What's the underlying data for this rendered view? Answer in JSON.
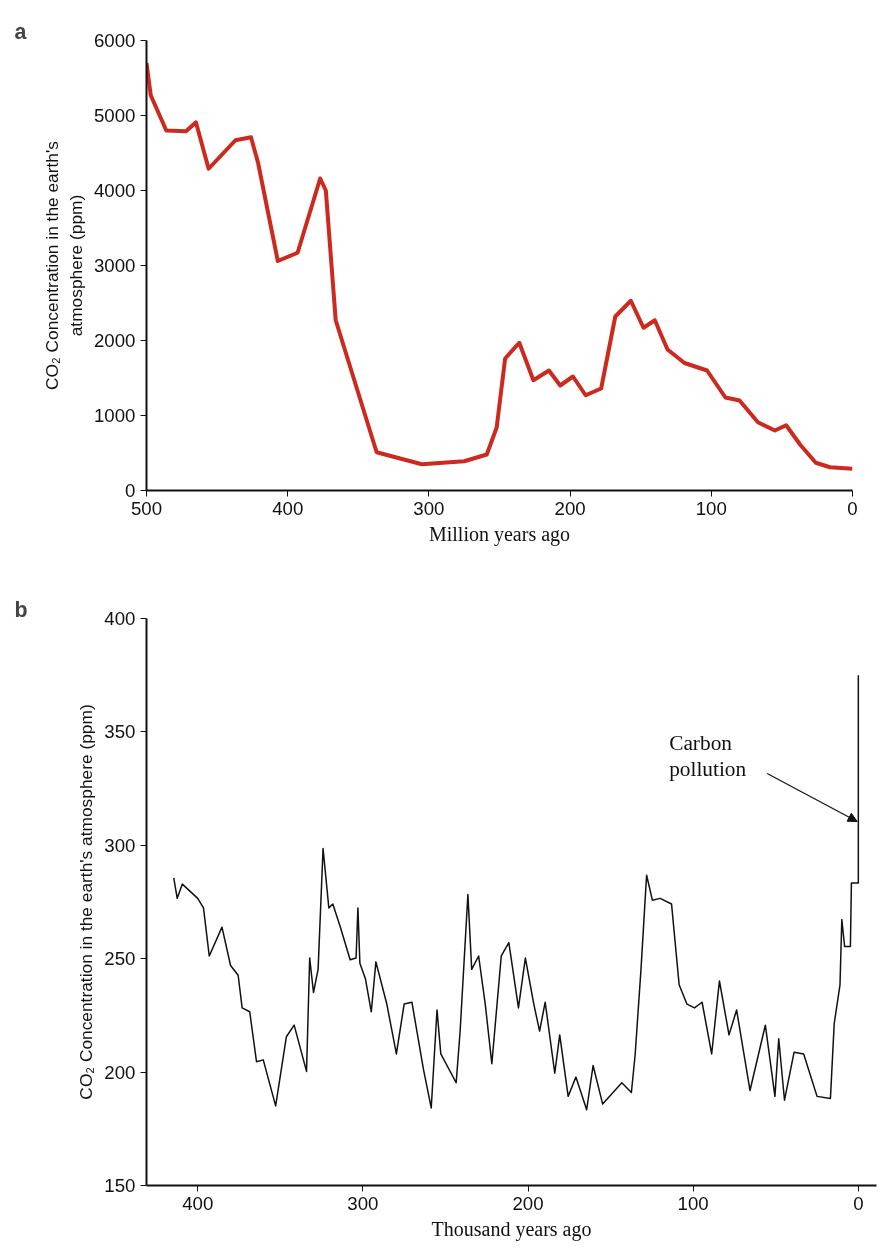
{
  "chart_data": [
    {
      "type": "line",
      "title": "a",
      "xlabel": "Million years ago",
      "ylabel": "CO₂ Concentration in the earth's\natmosphere (ppm)",
      "xlim": [
        500,
        0
      ],
      "xticks": [
        500,
        400,
        300,
        200,
        100,
        0
      ],
      "ylim": [
        0,
        6000
      ],
      "yticks": [
        0,
        1000,
        2000,
        3000,
        4000,
        5000,
        6000
      ],
      "grid": false,
      "series": [
        {
          "color": "#cc2a1e",
          "x": [
            500,
            497,
            486,
            472,
            465,
            456,
            444,
            437,
            426,
            421,
            407,
            393,
            377,
            373,
            366,
            337,
            305,
            275,
            259,
            252,
            246,
            236,
            226,
            215,
            207,
            198,
            189,
            178,
            168,
            157,
            148,
            140,
            131,
            119,
            103,
            90,
            80,
            67,
            55,
            47,
            37,
            26,
            16,
            0
          ],
          "values": [
            5700,
            5270,
            4800,
            4790,
            4910,
            4290,
            4530,
            4670,
            4710,
            4370,
            3060,
            3170,
            4160,
            4000,
            2270,
            510,
            350,
            390,
            480,
            840,
            1760,
            1970,
            1470,
            1600,
            1400,
            1520,
            1270,
            1360,
            2320,
            2530,
            2170,
            2270,
            1880,
            1700,
            1600,
            1240,
            1200,
            910,
            800,
            870,
            610,
            370,
            310,
            290
          ]
        }
      ]
    },
    {
      "type": "line",
      "title": "b",
      "xlabel": "Thousand years ago",
      "ylabel": "CO₂ Concentration in the earth's atmosphere (ppm)",
      "xlim": [
        431,
        -11
      ],
      "xticks": [
        400,
        300,
        200,
        100,
        0
      ],
      "ylim": [
        150,
        400
      ],
      "yticks": [
        150,
        200,
        250,
        300,
        350,
        400
      ],
      "grid": false,
      "annotations": [
        {
          "text": "Carbon\npollution",
          "x": 0.7,
          "y": 310.5
        }
      ],
      "series": [
        {
          "color": "#111111",
          "x": [
            414.5,
            412.4,
            409.3,
            400,
            396.5,
            393,
            385.3,
            380.1,
            375.5,
            373.1,
            368.5,
            364.4,
            360.3,
            352.8,
            346.3,
            341.6,
            334.1,
            332.2,
            329.9,
            327.1,
            324.1,
            320.6,
            318.2,
            313.6,
            307.7,
            304.1,
            303,
            301.8,
            298.4,
            294.9,
            292.1,
            285.5,
            279.7,
            275,
            270.3,
            263.3,
            258.6,
            255.1,
            252.8,
            243.5,
            241.1,
            236.4,
            234.1,
            229.9,
            225.9,
            221.9,
            216.2,
            211.6,
            205.8,
            201.6,
            196.5,
            193,
            189.6,
            183.8,
            180.8,
            175.7,
            171,
            164.5,
            160.6,
            154.8,
            143.2,
            137.4,
            135.1,
            131.6,
            128.2,
            124.7,
            120,
            113.1,
            108.5,
            103.8,
            99.2,
            94.6,
            88.8,
            84.1,
            78.3,
            73.7,
            65.6,
            56.3,
            50.5,
            48.2,
            44.7,
            38.9,
            33.1,
            25,
            16.9,
            14.6,
            11.1,
            10,
            8.3,
            4.8,
            4.2,
            0,
            0
          ],
          "values": [
            285.6,
            276.6,
            282.9,
            276.6,
            272.4,
            251.2,
            263.9,
            247,
            242.7,
            228.3,
            226.6,
            204.6,
            205.4,
            185.1,
            215.6,
            220.7,
            200.3,
            250.3,
            235.1,
            245.3,
            298.6,
            272.4,
            274.1,
            263.9,
            249.5,
            250.3,
            272.4,
            248,
            241,
            226.6,
            248.6,
            230,
            208,
            230,
            230.8,
            201.2,
            184.2,
            227.4,
            208,
            195.3,
            218.1,
            278.3,
            245.3,
            251.2,
            230,
            203.7,
            251.2,
            257.1,
            228.3,
            250.3,
            230,
            218.1,
            230.8,
            199.5,
            216.4,
            189.3,
            197.8,
            183.4,
            202.9,
            185.9,
            195.3,
            191,
            208,
            245.3,
            286.8,
            275.8,
            276.6,
            274.1,
            238.5,
            230,
            228.3,
            230.8,
            208,
            240.2,
            216.4,
            227.4,
            191.9,
            220.7,
            189.3,
            214.7,
            187.6,
            208.8,
            208,
            189.3,
            188.4,
            221.4,
            238.5,
            267.3,
            255.4,
            255.4,
            283.4,
            283.4,
            375
          ]
        }
      ]
    }
  ]
}
